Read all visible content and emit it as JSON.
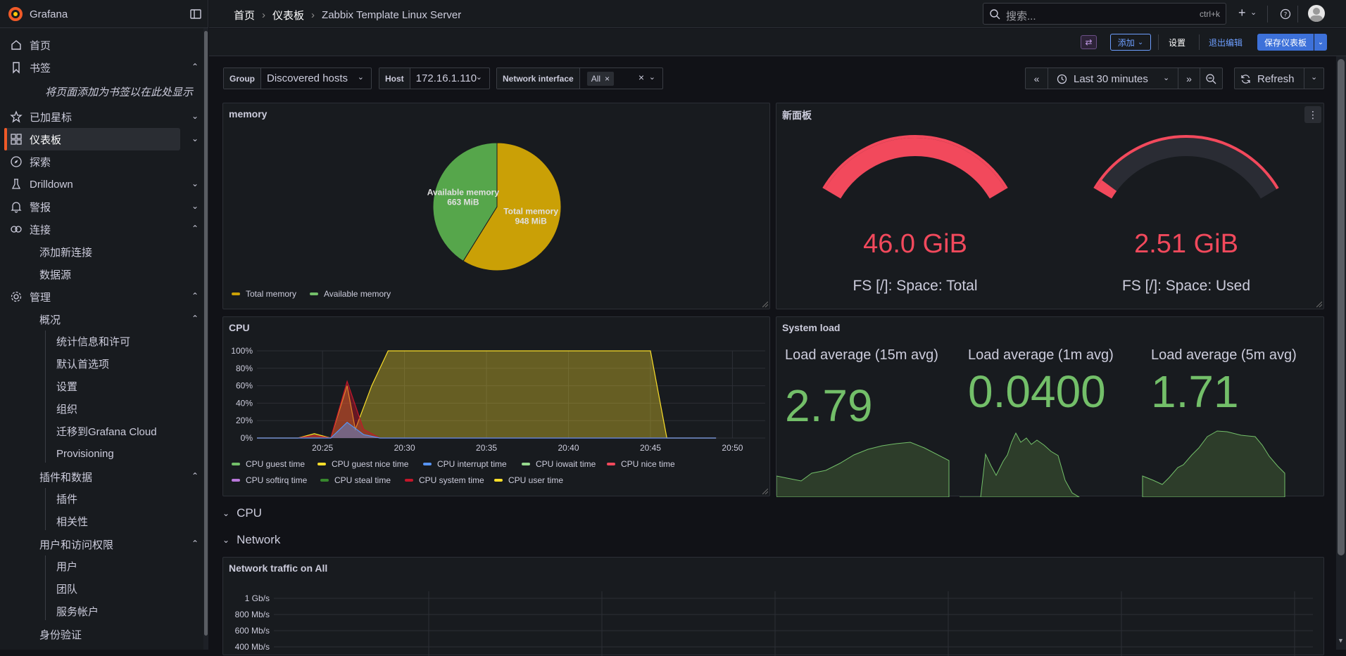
{
  "app": {
    "name": "Grafana"
  },
  "breadcrumb": [
    "首页",
    "仪表板",
    "Zabbix Template Linux Server"
  ],
  "search": {
    "placeholder": "搜索...",
    "shortcut": "ctrl+k"
  },
  "toolbar": {
    "add": "添加",
    "settings": "设置",
    "exit_edit": "退出编辑",
    "save": "保存仪表板"
  },
  "sidebar": {
    "home": "首页",
    "bookmarks": "书签",
    "bookmarks_hint": "将页面添加为书签以在此处显示",
    "starred": "已加星标",
    "dashboards": "仪表板",
    "explore": "探索",
    "drilldown": "Drilldown",
    "alerting": "警报",
    "connections": "连接",
    "add_connection": "添加新连接",
    "datasources": "数据源",
    "admin": "管理",
    "overview": "概况",
    "stats": "统计信息和许可",
    "default_prefs": "默认首选项",
    "settings": "设置",
    "orgs": "组织",
    "migrate": "迁移到Grafana Cloud",
    "provisioning": "Provisioning",
    "plugins_data": "插件和数据",
    "plugins": "插件",
    "correlations": "相关性",
    "users_access": "用户和访问权限",
    "users": "用户",
    "teams": "团队",
    "service_accounts": "服务帐户",
    "auth": "身份验证"
  },
  "variables": {
    "group_label": "Group",
    "group_value": "Discovered hosts",
    "host_label": "Host",
    "host_value": "172.16.1.110",
    "iface_label": "Network interface",
    "iface_value": "All"
  },
  "time": {
    "range": "Last 30 minutes",
    "refresh": "Refresh"
  },
  "panels": {
    "memory": {
      "title": "memory",
      "chart_data": {
        "type": "pie",
        "slices": [
          {
            "name": "Total memory",
            "value": 948,
            "unit": "MiB",
            "label": "948 MiB",
            "color": "#caa006"
          },
          {
            "name": "Available memory",
            "value": 663,
            "unit": "MiB",
            "label": "663 MiB",
            "color": "#56a64b"
          }
        ],
        "legend": [
          "Total memory",
          "Available memory"
        ]
      }
    },
    "new_panel": {
      "title": "新面板",
      "gauges": [
        {
          "value": "46.0 GiB",
          "label": "FS [/]: Space: Total",
          "fill": 1.0
        },
        {
          "value": "2.51 GiB",
          "label": "FS [/]: Space: Used",
          "fill": 0.05
        }
      ],
      "color": "#f2495c"
    },
    "cpu": {
      "title": "CPU",
      "chart_data": {
        "type": "area",
        "x": [
          "20:25",
          "20:30",
          "20:35",
          "20:40",
          "20:45",
          "20:50"
        ],
        "yticks": [
          "0%",
          "20%",
          "40%",
          "60%",
          "80%",
          "100%"
        ],
        "ylim": [
          0,
          100
        ],
        "series": [
          {
            "name": "CPU user time",
            "color": "#fade2a",
            "points": [
              [
                0,
                0
              ],
              [
                2.5,
                0
              ],
              [
                3.5,
                5
              ],
              [
                4.5,
                0
              ],
              [
                5.5,
                60
              ],
              [
                6,
                10
              ],
              [
                7,
                60
              ],
              [
                8,
                100
              ],
              [
                24,
                100
              ],
              [
                25,
                0
              ],
              [
                28,
                0
              ]
            ]
          },
          {
            "name": "CPU system time",
            "color": "#c4162a",
            "points": [
              [
                0,
                0
              ],
              [
                2.5,
                0
              ],
              [
                3.5,
                3
              ],
              [
                4.5,
                0
              ],
              [
                5.5,
                65
              ],
              [
                6.5,
                10
              ],
              [
                7.5,
                0
              ],
              [
                28,
                0
              ]
            ]
          },
          {
            "name": "CPU interrupt time",
            "color": "#5794f2",
            "points": [
              [
                0,
                0
              ],
              [
                4.5,
                0
              ],
              [
                5.5,
                18
              ],
              [
                6.5,
                4
              ],
              [
                7.5,
                0
              ],
              [
                28,
                0
              ]
            ]
          }
        ],
        "legend": [
          "CPU guest time",
          "CPU guest nice time",
          "CPU interrupt time",
          "CPU iowait time",
          "CPU nice time",
          "CPU softirq time",
          "CPU steal time",
          "CPU system time",
          "CPU user time"
        ],
        "legend_colors": [
          "#73bf69",
          "#fade2a",
          "#5794f2",
          "#96d98d",
          "#f2495c",
          "#b877d9",
          "#37872d",
          "#c4162a",
          "#fade2a"
        ]
      }
    },
    "system_load": {
      "title": "System load",
      "stats": [
        {
          "label": "Load average (15m avg)",
          "value": "2.79"
        },
        {
          "label": "Load average (1m avg)",
          "value": "0.0400"
        },
        {
          "label": "Load average (5m avg)",
          "value": "1.71"
        }
      ],
      "color": "#73bf69"
    },
    "rows": [
      "CPU",
      "Network"
    ],
    "network": {
      "title": "Network traffic on All",
      "chart_data": {
        "type": "line",
        "yticks": [
          "1 Gb/s",
          "800 Mb/s",
          "600 Mb/s",
          "400 Mb/s"
        ]
      }
    }
  }
}
